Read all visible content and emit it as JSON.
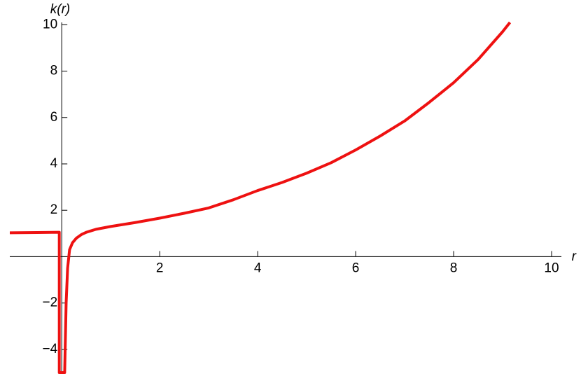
{
  "chart_data": {
    "type": "line",
    "x_label": "r",
    "y_label": "k(r)",
    "xlim": [
      -1.06,
      10.2
    ],
    "ylim": [
      -5,
      10.1
    ],
    "xticks": [
      2,
      4,
      6,
      8,
      10
    ],
    "yticks": [
      {
        "value": -4,
        "label": "−4"
      },
      {
        "value": -2,
        "label": "−2"
      },
      2,
      4,
      6,
      8,
      10
    ],
    "series": [
      {
        "name": "k(r)",
        "color": "#ee1111",
        "x": [
          -1.06,
          -0.5,
          -0.05,
          -0.05,
          0.06,
          0.09,
          0.12,
          0.16,
          0.22,
          0.3,
          0.4,
          0.5,
          0.7,
          1,
          1.5,
          2,
          2.5,
          3,
          3.5,
          4,
          4.5,
          5,
          5.5,
          6,
          6.5,
          7,
          7.5,
          8,
          8.5,
          9,
          9.15
        ],
        "values": [
          1.03,
          1.04,
          1.05,
          -5,
          -5,
          -2,
          -0.5,
          0.3,
          0.6,
          0.8,
          0.95,
          1.05,
          1.18,
          1.3,
          1.47,
          1.66,
          1.87,
          2.1,
          2.45,
          2.85,
          3.2,
          3.6,
          4.05,
          4.6,
          5.2,
          5.85,
          6.65,
          7.5,
          8.5,
          9.7,
          10.1
        ]
      }
    ]
  }
}
